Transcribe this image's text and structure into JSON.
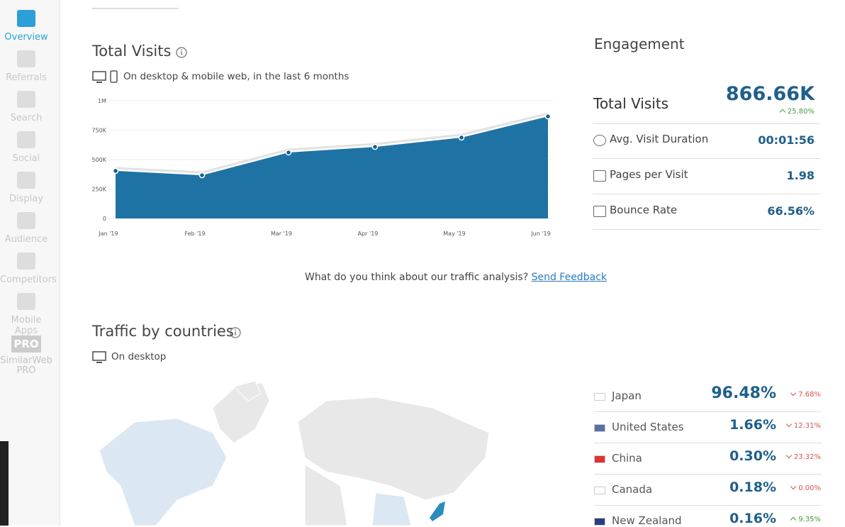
{
  "sidebar": {
    "items": [
      "Overview",
      "Referrals",
      "Search",
      "Social",
      "Display",
      "Audience",
      "Competitors",
      "Mobile Apps"
    ],
    "pro_badge": "PRO",
    "pro_label": "SimilarWeb PRO"
  },
  "total_visits": {
    "title": "Total Visits",
    "subtitle": "On desktop & mobile web, in the last 6 months",
    "chart": {
      "type": "area",
      "categories": [
        "Jan '19",
        "Feb '19",
        "Mar '19",
        "Apr '19",
        "May '19",
        "Jun '19"
      ],
      "values": [
        404000,
        367000,
        560000,
        608000,
        687000,
        866660
      ],
      "color": "#1f73a4",
      "ylim": [
        0,
        1000000
      ],
      "yticks": [
        0,
        {
          "value": 250000,
          "label": "250K"
        },
        {
          "value": 500000,
          "label": "500K"
        },
        {
          "value": 750000,
          "label": "750K"
        },
        {
          "value": 1000000,
          "label": "1M"
        }
      ],
      "grid": true
    }
  },
  "engagement": {
    "title": "Engagement",
    "total_label": "Total Visits",
    "total_value": "866.66K",
    "total_change": "25.80%",
    "total_trend": "up",
    "metrics": [
      {
        "label": "Avg. Visit Duration",
        "value": "00:01:56"
      },
      {
        "label": "Pages per Visit",
        "value": "1.98"
      },
      {
        "label": "Bounce Rate",
        "value": "66.56%"
      }
    ]
  },
  "feedback": {
    "text": "What do you think about our traffic analysis?",
    "link": "Send Feedback"
  },
  "countries": {
    "title": "Traffic by countries",
    "subtitle": "On desktop",
    "rows": [
      {
        "name": "Japan",
        "share": "96.48%",
        "change": "7.68%",
        "trend": "down"
      },
      {
        "name": "United States",
        "share": "1.66%",
        "change": "12.31%",
        "trend": "down"
      },
      {
        "name": "China",
        "share": "0.30%",
        "change": "23.32%",
        "trend": "down"
      },
      {
        "name": "Canada",
        "share": "0.18%",
        "change": "0.00%",
        "trend": "down"
      },
      {
        "name": "New Zealand",
        "share": "0.16%",
        "change": "9.35%",
        "trend": "up"
      }
    ]
  }
}
